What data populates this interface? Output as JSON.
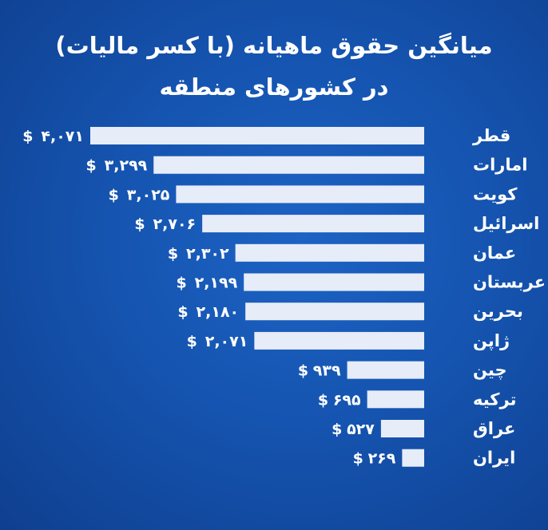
{
  "chart_data": {
    "type": "bar",
    "orientation": "horizontal",
    "title_line1": "میانگین حقوق ماهیانه (با کسر مالیات)",
    "title_line2": "در کشورهای منطقه",
    "currency_symbol": "$",
    "categories": [
      "قطر",
      "امارات",
      "کویت",
      "اسرائیل",
      "عمان",
      "عربستان",
      "بحرین",
      "ژاپن",
      "چین",
      "ترکیه",
      "عراق",
      "ایران"
    ],
    "values": [
      4071,
      3299,
      3025,
      2706,
      2302,
      2199,
      2180,
      2071,
      939,
      695,
      527,
      269
    ],
    "value_labels": [
      "۴,۰۷۱",
      "۳,۲۹۹",
      "۳,۰۲۵",
      "۲,۷۰۶",
      "۲,۳۰۲",
      "۲,۱۹۹",
      "۲,۱۸۰",
      "۲,۰۷۱",
      "۹۳۹",
      "۶۹۵",
      "۵۲۷",
      "۲۶۹"
    ],
    "bar_color": "#e6ecf8",
    "background_color": "#1554b0",
    "grid": false,
    "legend": "none"
  }
}
